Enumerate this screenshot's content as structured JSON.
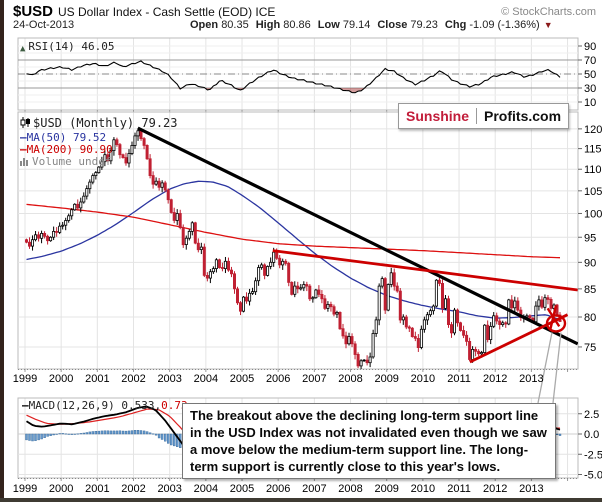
{
  "header": {
    "symbol": "$USD",
    "title": "US Dollar Index - Cash Settle (EOD) ICE",
    "copyright": "© StockCharts.com",
    "date": "24-Oct-2013",
    "quote_items": [
      {
        "label": "Open",
        "value": "80.35"
      },
      {
        "label": "High",
        "value": "80.86"
      },
      {
        "label": "Low",
        "value": "79.14"
      },
      {
        "label": "Close",
        "value": "79.23"
      },
      {
        "label": "Chg",
        "value": "-1.09 (-1.36%)"
      }
    ],
    "change_direction": "down"
  },
  "watermark": {
    "left": "Sunshine",
    "right": "Profits.com"
  },
  "annotation": {
    "text": "The breakout above the declining long-term support line in the USD Index was not invalidated even though we saw a move below the medium-term support line. The long-term support is currently close to this year's lows."
  },
  "colors": {
    "candle_down": "#c02032",
    "candle_up_stroke": "#000000",
    "candle_up_fill": "#ffffff",
    "ma50": "#2b35a0",
    "ma200": "#dd1111",
    "trend_black": "#000000",
    "trend_red": "#cc0000",
    "macd_line": "#000000",
    "macd_signal": "#dd2222",
    "hist_fill": "#6699cc",
    "hist_stroke": "#336699",
    "rsi_line": "#000000",
    "rsi_band": "#999999",
    "rsi_shade": "rgba(170,60,60,0.5)",
    "grid": "#e4e4e4",
    "panel_border": "#bbbbbb",
    "axis_text": "#000000",
    "callout": "#aaaaaa",
    "sunshine_red": "#c21d3a",
    "neg_triangle": "#8b1a1a"
  },
  "chart_data": [
    {
      "id": "rsi",
      "type": "line",
      "label": "RSI(14) 46.05",
      "current": 46.05,
      "ylim": [
        0,
        100
      ],
      "yticks": [
        90,
        70,
        50,
        30,
        10
      ],
      "bands": {
        "overbought": 70,
        "oversold": 30,
        "mid": 50
      },
      "anchors": [
        [
          1999.0,
          52
        ],
        [
          1999.2,
          48
        ],
        [
          1999.4,
          55
        ],
        [
          1999.7,
          58
        ],
        [
          2000.0,
          60
        ],
        [
          2000.3,
          56
        ],
        [
          2000.6,
          62
        ],
        [
          2000.9,
          65
        ],
        [
          2001.2,
          61
        ],
        [
          2001.5,
          67
        ],
        [
          2001.7,
          60
        ],
        [
          2002.0,
          65
        ],
        [
          2002.2,
          68
        ],
        [
          2002.5,
          61
        ],
        [
          2002.8,
          54
        ],
        [
          2003.0,
          47
        ],
        [
          2003.3,
          29
        ],
        [
          2003.55,
          36
        ],
        [
          2003.8,
          33
        ],
        [
          2004.1,
          27
        ],
        [
          2004.4,
          41
        ],
        [
          2004.7,
          34
        ],
        [
          2004.95,
          26
        ],
        [
          2005.2,
          36
        ],
        [
          2005.5,
          46
        ],
        [
          2005.85,
          56
        ],
        [
          2006.1,
          50
        ],
        [
          2006.4,
          44
        ],
        [
          2006.7,
          41
        ],
        [
          2007.0,
          37
        ],
        [
          2007.3,
          34
        ],
        [
          2007.6,
          30
        ],
        [
          2007.9,
          26
        ],
        [
          2008.15,
          23
        ],
        [
          2008.4,
          30
        ],
        [
          2008.7,
          44
        ],
        [
          2008.95,
          57
        ],
        [
          2009.2,
          54
        ],
        [
          2009.5,
          43
        ],
        [
          2009.8,
          35
        ],
        [
          2010.0,
          40
        ],
        [
          2010.3,
          48
        ],
        [
          2010.5,
          55
        ],
        [
          2010.8,
          42
        ],
        [
          2011.0,
          37
        ],
        [
          2011.3,
          32
        ],
        [
          2011.6,
          36
        ],
        [
          2011.9,
          46
        ],
        [
          2012.2,
          49
        ],
        [
          2012.5,
          53
        ],
        [
          2012.8,
          46
        ],
        [
          2013.0,
          48
        ],
        [
          2013.3,
          54
        ],
        [
          2013.5,
          56
        ],
        [
          2013.65,
          50
        ],
        [
          2013.79,
          46.05
        ]
      ]
    },
    {
      "id": "price",
      "type": "candlestick",
      "label": "$USD (Monthly) 79.23",
      "log_scale": true,
      "start_year": 1999,
      "interval": "monthly",
      "yticks": [
        75,
        80,
        85,
        90,
        95,
        100,
        105,
        110,
        115,
        120
      ],
      "xticks": [
        "1999",
        "2000",
        "2001",
        "2002",
        "2003",
        "2004",
        "2005",
        "2006",
        "2007",
        "2008",
        "2009",
        "2010",
        "2011",
        "2012",
        "2013"
      ],
      "monthly_closes": [
        94.0,
        93.2,
        94.5,
        95.5,
        94.8,
        95.8,
        95.2,
        94.3,
        95.0,
        96.2,
        96.0,
        97.3,
        97.5,
        98.5,
        99.5,
        100.8,
        102.0,
        101.2,
        102.5,
        103.8,
        105.5,
        107.0,
        108.5,
        109.2,
        110.5,
        111.8,
        113.5,
        112.0,
        114.5,
        117.2,
        116.0,
        113.5,
        112.8,
        111.5,
        113.8,
        115.8,
        118.2,
        119.5,
        117.5,
        115.8,
        112.5,
        108.5,
        106.5,
        107.2,
        105.8,
        106.8,
        105.2,
        103.0,
        100.2,
        98.5,
        100.0,
        97.0,
        93.5,
        94.8,
        96.2,
        98.0,
        93.8,
        92.5,
        93.0,
        87.5,
        87.0,
        88.2,
        88.8,
        90.5,
        89.0,
        88.8,
        90.2,
        88.5,
        87.8,
        85.0,
        82.5,
        81.0,
        83.5,
        82.8,
        84.2,
        84.5,
        86.5,
        89.0,
        89.5,
        87.5,
        89.2,
        90.0,
        92.0,
        90.8,
        89.5,
        90.2,
        89.8,
        86.2,
        84.0,
        85.5,
        85.0,
        85.2,
        85.8,
        85.5,
        83.2,
        83.4,
        84.8,
        84.0,
        83.2,
        81.5,
        82.2,
        81.8,
        80.5,
        80.8,
        78.0,
        76.8,
        75.5,
        76.7,
        75.5,
        73.8,
        72.0,
        72.8,
        72.9,
        72.5,
        73.4,
        77.2,
        79.5,
        85.5,
        86.9,
        81.2,
        85.8,
        88.0,
        85.5,
        84.6,
        79.5,
        80.0,
        78.3,
        78.1,
        76.7,
        76.4,
        74.9,
        77.9,
        79.5,
        80.4,
        81.1,
        81.9,
        86.6,
        86.0,
        81.5,
        83.2,
        78.7,
        77.3,
        81.2,
        79.0,
        77.7,
        76.9,
        75.9,
        73.0,
        74.6,
        74.3,
        73.9,
        74.1,
        78.6,
        76.2,
        78.4,
        80.2,
        79.3,
        78.7,
        79.0,
        78.8,
        83.0,
        81.6,
        82.8,
        81.2,
        79.9,
        80.0,
        80.2,
        79.8,
        79.2,
        81.9,
        83.0,
        81.7,
        83.4,
        83.1,
        81.5,
        82.1,
        80.2,
        79.23
      ],
      "last_ohlc": {
        "open": 80.35,
        "high": 80.86,
        "low": 79.14,
        "close": 79.23
      },
      "overlays": [
        {
          "name": "MA(50)",
          "label": "MA(50) 79.52",
          "current": 79.52,
          "anchors": [
            [
              1999.0,
              90.5
            ],
            [
              1999.5,
              91.2
            ],
            [
              2000.0,
              92.2
            ],
            [
              2000.5,
              93.6
            ],
            [
              2001.0,
              95.4
            ],
            [
              2001.5,
              97.6
            ],
            [
              2002.0,
              100.2
            ],
            [
              2002.5,
              103.0
            ],
            [
              2003.0,
              105.4
            ],
            [
              2003.4,
              106.6
            ],
            [
              2003.8,
              107.2
            ],
            [
              2004.2,
              107.0
            ],
            [
              2004.6,
              106.0
            ],
            [
              2005.0,
              104.0
            ],
            [
              2005.5,
              101.2
            ],
            [
              2006.0,
              98.0
            ],
            [
              2006.5,
              94.8
            ],
            [
              2007.0,
              91.8
            ],
            [
              2007.5,
              89.2
            ],
            [
              2008.0,
              87.0
            ],
            [
              2008.5,
              85.2
            ],
            [
              2009.0,
              83.8
            ],
            [
              2009.5,
              82.8
            ],
            [
              2010.0,
              82.0
            ],
            [
              2010.5,
              81.4
            ],
            [
              2011.0,
              80.9
            ],
            [
              2011.5,
              80.2
            ],
            [
              2012.0,
              79.8
            ],
            [
              2012.5,
              79.9
            ],
            [
              2013.0,
              80.2
            ],
            [
              2013.4,
              80.4
            ],
            [
              2013.79,
              79.52
            ]
          ]
        },
        {
          "name": "MA(200)",
          "label": "MA(200) 90.90",
          "current": 90.9,
          "anchors": [
            [
              1999.0,
              102.0
            ],
            [
              2000.0,
              101.2
            ],
            [
              2001.0,
              100.3
            ],
            [
              2002.0,
              99.2
            ],
            [
              2003.0,
              97.6
            ],
            [
              2004.0,
              96.0
            ],
            [
              2005.0,
              94.6
            ],
            [
              2006.0,
              93.7
            ],
            [
              2007.0,
              93.2
            ],
            [
              2008.0,
              92.9
            ],
            [
              2009.0,
              92.6
            ],
            [
              2010.0,
              92.3
            ],
            [
              2011.0,
              91.9
            ],
            [
              2012.0,
              91.5
            ],
            [
              2013.0,
              91.1
            ],
            [
              2013.79,
              90.9
            ]
          ]
        }
      ],
      "volume_label": "Volume undef",
      "trendlines": [
        {
          "name": "long-term declining support",
          "color": "#000000",
          "width": 3.2,
          "from": [
            2002.12,
            120.2
          ],
          "to": [
            2014.28,
            75.5
          ]
        },
        {
          "name": "medium-term declining support",
          "color": "#cc0000",
          "width": 2.8,
          "from": [
            2005.85,
            92.3
          ],
          "to": [
            2014.28,
            84.8
          ]
        },
        {
          "name": "rising support",
          "color": "#cc0000",
          "width": 2.8,
          "from": [
            2011.3,
            72.6
          ],
          "to": [
            2014.0,
            80.4
          ]
        }
      ],
      "highlight_ellipse": {
        "year": 2013.68,
        "price": 78.9
      },
      "scribble": [
        [
          2013.45,
          81.5,
          2013.77,
          78.4
        ],
        [
          2013.68,
          82.0,
          2013.52,
          77.8
        ]
      ]
    },
    {
      "id": "macd",
      "type": "line+histogram",
      "label": "MACD(12,26,9) 0.533,",
      "signal_label": "0.73",
      "current": 0.533,
      "signal_current": 0.73,
      "yticks": [
        2.5,
        0.0,
        -2.5,
        -5.0
      ],
      "macd_anchors": [
        [
          1999.0,
          1.7
        ],
        [
          1999.25,
          1.0
        ],
        [
          1999.5,
          0.9
        ],
        [
          1999.75,
          1.1
        ],
        [
          2000.0,
          1.3
        ],
        [
          2000.3,
          1.2
        ],
        [
          2000.6,
          1.5
        ],
        [
          2000.9,
          1.9
        ],
        [
          2001.2,
          2.2
        ],
        [
          2001.5,
          2.4
        ],
        [
          2001.8,
          2.7
        ],
        [
          2002.1,
          3.2
        ],
        [
          2002.35,
          3.4
        ],
        [
          2002.6,
          3.0
        ],
        [
          2002.85,
          1.8
        ],
        [
          2003.1,
          0.3
        ],
        [
          2003.35,
          -1.2
        ],
        [
          2003.6,
          -2.6
        ],
        [
          2003.9,
          -3.6
        ],
        [
          2004.3,
          -4.1
        ],
        [
          2004.7,
          -3.6
        ],
        [
          2005.0,
          -2.6
        ],
        [
          2005.4,
          -1.2
        ],
        [
          2005.8,
          0.2
        ],
        [
          2006.1,
          0.9
        ],
        [
          2006.5,
          1.0
        ],
        [
          2006.9,
          0.4
        ],
        [
          2007.3,
          -0.4
        ],
        [
          2007.7,
          -1.4
        ],
        [
          2008.0,
          -2.2
        ],
        [
          2008.3,
          -2.6
        ],
        [
          2008.6,
          -1.6
        ],
        [
          2008.9,
          1.2
        ],
        [
          2009.2,
          2.6
        ],
        [
          2009.5,
          1.8
        ],
        [
          2009.8,
          0.2
        ],
        [
          2010.1,
          -0.6
        ],
        [
          2010.4,
          0.4
        ],
        [
          2010.7,
          0.6
        ],
        [
          2011.0,
          -0.4
        ],
        [
          2011.3,
          -1.4
        ],
        [
          2011.6,
          -1.6
        ],
        [
          2011.9,
          -0.6
        ],
        [
          2012.2,
          0.2
        ],
        [
          2012.5,
          0.7
        ],
        [
          2012.8,
          0.8
        ],
        [
          2013.1,
          0.7
        ],
        [
          2013.4,
          0.9
        ],
        [
          2013.6,
          0.8
        ],
        [
          2013.79,
          0.533
        ]
      ],
      "signal_anchors": [
        [
          1999.0,
          2.4
        ],
        [
          1999.3,
          1.8
        ],
        [
          1999.6,
          1.3
        ],
        [
          2000.0,
          1.2
        ],
        [
          2000.4,
          1.3
        ],
        [
          2000.8,
          1.5
        ],
        [
          2001.2,
          1.8
        ],
        [
          2001.6,
          2.1
        ],
        [
          2002.0,
          2.6
        ],
        [
          2002.4,
          3.1
        ],
        [
          2002.7,
          3.0
        ],
        [
          2003.0,
          2.2
        ],
        [
          2003.3,
          0.8
        ],
        [
          2003.6,
          -0.8
        ],
        [
          2004.0,
          -2.6
        ],
        [
          2004.4,
          -3.6
        ],
        [
          2004.8,
          -3.7
        ],
        [
          2005.2,
          -2.8
        ],
        [
          2005.6,
          -1.4
        ],
        [
          2006.0,
          0.0
        ],
        [
          2006.4,
          0.8
        ],
        [
          2006.8,
          0.7
        ],
        [
          2007.2,
          0.0
        ],
        [
          2007.6,
          -0.8
        ],
        [
          2008.0,
          -1.7
        ],
        [
          2008.4,
          -2.3
        ],
        [
          2008.8,
          -1.2
        ],
        [
          2009.2,
          1.2
        ],
        [
          2009.5,
          1.9
        ],
        [
          2009.8,
          0.9
        ],
        [
          2010.2,
          -0.2
        ],
        [
          2010.6,
          0.3
        ],
        [
          2011.0,
          0.1
        ],
        [
          2011.4,
          -0.9
        ],
        [
          2011.8,
          -1.1
        ],
        [
          2012.2,
          -0.2
        ],
        [
          2012.6,
          0.5
        ],
        [
          2013.0,
          0.7
        ],
        [
          2013.4,
          0.8
        ],
        [
          2013.79,
          0.73
        ]
      ]
    }
  ]
}
